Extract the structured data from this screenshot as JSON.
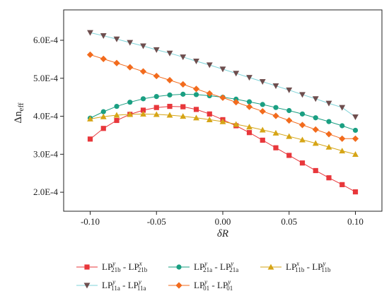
{
  "chart_data": {
    "type": "line",
    "xlabel": "δR",
    "ylabel_main": "Δn",
    "ylabel_sub": "eff",
    "xlim": [
      -0.12,
      0.12
    ],
    "ylim": [
      0.00015,
      0.00068
    ],
    "x_ticks": [
      -0.1,
      -0.05,
      0.0,
      0.05,
      0.1
    ],
    "x_tick_labels": [
      "-0.10",
      "-0.05",
      "0.00",
      "0.05",
      "0.10"
    ],
    "y_ticks": [
      0.0002,
      0.0003,
      0.0004,
      0.0005,
      0.0006
    ],
    "y_tick_labels": [
      "2.0E-4",
      "3.0E-4",
      "4.0E-4",
      "5.0E-4",
      "6.0E-4"
    ],
    "x": [
      -0.1,
      -0.09,
      -0.08,
      -0.07,
      -0.06,
      -0.05,
      -0.04,
      -0.03,
      -0.02,
      -0.01,
      0.0,
      0.01,
      0.02,
      0.03,
      0.04,
      0.05,
      0.06,
      0.07,
      0.08,
      0.09,
      0.1
    ],
    "grid": false,
    "legend_position": "bottom",
    "series": [
      {
        "base": "LP",
        "sup1": "y",
        "sub1": "21b",
        "sep": " - ",
        "base2": "LP",
        "sup2": "x",
        "sub2": "21b",
        "marker": "square",
        "color": "#e8373b",
        "values": [
          0.00034,
          0.000368,
          0.000389,
          0.000405,
          0.000416,
          0.000423,
          0.000426,
          0.000425,
          0.000418,
          0.000406,
          0.000391,
          0.000375,
          0.000357,
          0.000337,
          0.000317,
          0.000297,
          0.000277,
          0.000257,
          0.000238,
          0.00022,
          0.000201
        ]
      },
      {
        "base": "LP",
        "sup1": "y",
        "sub1": "21a",
        "sep": " - ",
        "base2": "LP",
        "sup2": "y",
        "sub2": "21a",
        "marker": "circle",
        "color": "#1a9f82",
        "values": [
          0.000395,
          0.000412,
          0.000426,
          0.000437,
          0.000446,
          0.000452,
          0.000456,
          0.000458,
          0.000457,
          0.000454,
          0.00045,
          0.000445,
          0.000438,
          0.000431,
          0.000423,
          0.000415,
          0.000406,
          0.000396,
          0.000386,
          0.000375,
          0.000363
        ]
      },
      {
        "base": "LP",
        "sup1": "x",
        "sub1": "11b",
        "sep": " - ",
        "base2": "LP",
        "sup2": "y",
        "sub2": "11b",
        "marker": "triangle",
        "color": "#d6a516",
        "values": [
          0.000393,
          0.000399,
          0.000403,
          0.000405,
          0.000406,
          0.000405,
          0.000403,
          0.0004,
          0.000396,
          0.000391,
          0.000386,
          0.000379,
          0.000372,
          0.000364,
          0.000356,
          0.000347,
          0.000338,
          0.000329,
          0.000319,
          0.000309,
          0.0003
        ]
      },
      {
        "base": "LP",
        "sup1": "y",
        "sub1": "11a",
        "sep": " - ",
        "base2": "LP",
        "sup2": "y",
        "sub2": "11a",
        "marker": "triangle-down",
        "color": "#6e4e4e",
        "line_color": "#7fd3d8",
        "values": [
          0.00062,
          0.000612,
          0.000603,
          0.000594,
          0.000585,
          0.000575,
          0.000566,
          0.000556,
          0.000545,
          0.000535,
          0.000524,
          0.000513,
          0.000502,
          0.000491,
          0.00048,
          0.000469,
          0.000457,
          0.000446,
          0.000434,
          0.000423,
          0.000398
        ]
      },
      {
        "base": "LP",
        "sup1": "y",
        "sub1": "01",
        "sep": " - ",
        "base2": "LP",
        "sup2": "y",
        "sub2": "01",
        "marker": "diamond",
        "color": "#f26b1d",
        "values": [
          0.000562,
          0.000551,
          0.00054,
          0.000529,
          0.000518,
          0.000506,
          0.000495,
          0.000484,
          0.000472,
          0.00046,
          0.000449,
          0.000437,
          0.000425,
          0.000413,
          0.000401,
          0.000389,
          0.000377,
          0.000365,
          0.000353,
          0.000341,
          0.000341
        ]
      }
    ]
  }
}
